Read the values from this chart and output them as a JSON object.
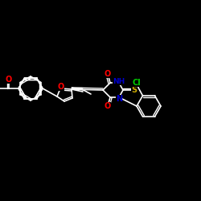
{
  "background_color": "#000000",
  "bond_color": "#ffffff",
  "atom_colors": {
    "O": "#ff0000",
    "N": "#0000cc",
    "S": "#ccaa00",
    "Cl": "#00cc00",
    "C": "#ffffff"
  },
  "figsize": [
    2.5,
    2.5
  ],
  "dpi": 100,
  "lw": 1.2,
  "dlw": 1.0,
  "doff": 2.0
}
